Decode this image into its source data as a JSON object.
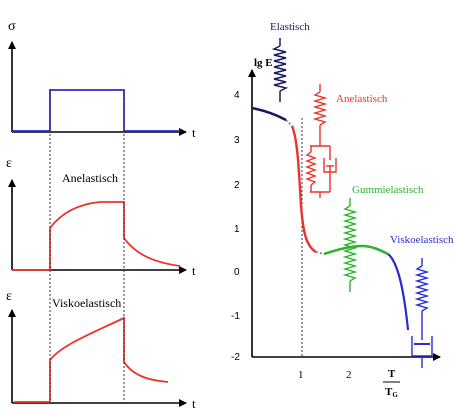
{
  "left_panels": {
    "top": {
      "y_symbol": "σ",
      "x_symbol": "t"
    },
    "middle": {
      "y_symbol": "ε",
      "x_symbol": "t",
      "title": "Anelastisch"
    },
    "bottom": {
      "y_symbol": "ε",
      "x_symbol": "t",
      "title": "Viskoelastisch"
    }
  },
  "right_panel": {
    "y_axis_label": "lg E",
    "y_ticks": [
      "4",
      "3",
      "2",
      "1",
      "0",
      "-1",
      "-2"
    ],
    "x_ticks": [
      "1",
      "2"
    ],
    "x_axis_label_num": "T",
    "x_axis_label_den": "T",
    "x_axis_label_den_sub": "G",
    "regions": {
      "elastisch": "Elastisch",
      "anelastisch": "Anelastisch",
      "gummielastisch": "Gummielastisch",
      "viskoelastisch": "Viskoelastisch"
    }
  },
  "colors": {
    "axis": "#000000",
    "stress_pulse": "#2b2bd6",
    "strain": "#e8342a",
    "elastic": "#1a1a5e",
    "anelastic": "#e8342a",
    "rubber": "#2bb52b",
    "viscous": "#2b2bd6",
    "dotted": "#555555"
  }
}
